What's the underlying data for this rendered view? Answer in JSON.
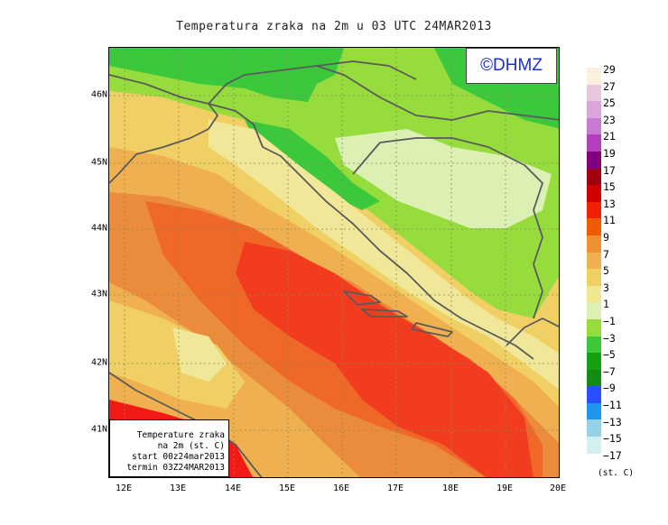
{
  "title": "Temperatura zraka na 2m u 03 UTC 24MAR2013",
  "watermark": "©DHMZ",
  "infobox": {
    "line1": "Temperature zraka",
    "line2": "na 2m (st. C)",
    "line3": "start 00z24mar2013",
    "line4": "termin 03Z24MAR2013"
  },
  "latitude_labels": [
    "46N",
    "45N",
    "44N",
    "43N",
    "42N",
    "41N"
  ],
  "longitude_labels": [
    "12E",
    "13E",
    "14E",
    "15E",
    "16E",
    "17E",
    "18E",
    "19E",
    "20E"
  ],
  "colorbar": {
    "unit": "(st. C)",
    "labels": [
      "29",
      "27",
      "25",
      "23",
      "21",
      "19",
      "17",
      "15",
      "13",
      "11",
      "9",
      "7",
      "5",
      "3",
      "1",
      "−1",
      "−3",
      "−5",
      "−7",
      "−9",
      "−11",
      "−13",
      "−15",
      "−17"
    ],
    "colors": [
      "#fdf0e0",
      "#e8c8e0",
      "#dca6dc",
      "#c87ad0",
      "#b040c0",
      "#800080",
      "#a00010",
      "#d00000",
      "#f02000",
      "#f05a00",
      "#f09030",
      "#f0b050",
      "#f0d060",
      "#f0e890",
      "#dcf0b4",
      "#96dc3c",
      "#3cc83c",
      "#14a014",
      "#148c14",
      "#2850ff",
      "#1e96f0",
      "#96d2e6",
      "#d2f0f0",
      "#ffffff"
    ]
  },
  "map_colors": {
    "sea_dark_red": "#f21a14",
    "sea_red": "#f23c20",
    "orange_red": "#f06828",
    "orange": "#eb8c3c",
    "light_orange": "#f0b050",
    "yellow": "#f0d064",
    "pale_yellow": "#f0e898",
    "pale_green": "#dcf0b4",
    "light_green": "#96dc3c",
    "green": "#3cc83c",
    "border": "#5a5a5a",
    "grid": "#8a8a5a"
  }
}
